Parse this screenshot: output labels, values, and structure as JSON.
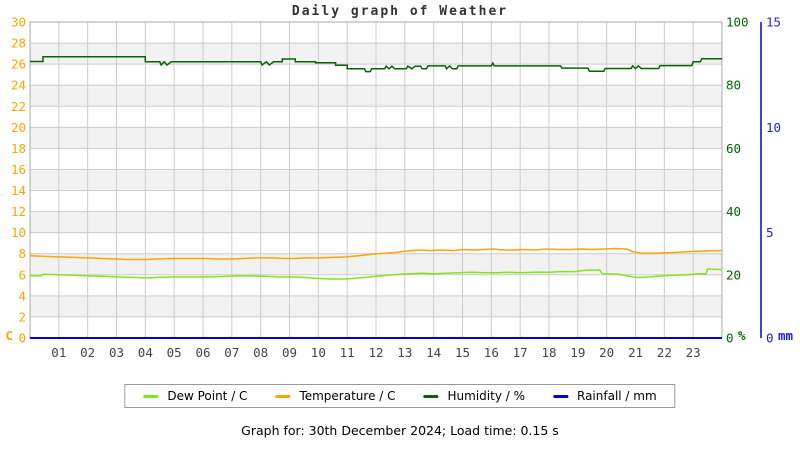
{
  "title": "Daily graph of Weather",
  "footer": {
    "text": "Graph for: 30th December 2024; Load time: 0.15 s"
  },
  "legend": {
    "items": [
      {
        "label": "Dew Point / C",
        "color": "#82E619"
      },
      {
        "label": "Temperature / C",
        "color": "#FFA500"
      },
      {
        "label": "Humidity / %",
        "color": "#006600"
      },
      {
        "label": "Rainfall / mm",
        "color": "#0000DD"
      }
    ]
  },
  "chart_data": {
    "type": "line",
    "title": "Daily graph of Weather",
    "grid": true,
    "band_color": "#F2F2F2",
    "grid_color": "#CCCCCC",
    "border_color": "#AAAAAA",
    "x_axis": {
      "range": [
        0,
        24
      ],
      "tick_labels": [
        "01",
        "02",
        "03",
        "04",
        "05",
        "06",
        "07",
        "08",
        "09",
        "10",
        "11",
        "12",
        "13",
        "14",
        "15",
        "16",
        "17",
        "18",
        "19",
        "20",
        "21",
        "22",
        "23"
      ],
      "label_color": "#444444"
    },
    "y_axis_temp": {
      "unit": "C",
      "range": [
        0,
        30
      ],
      "tick_step": 2,
      "tick_labels": [
        "0",
        "2",
        "4",
        "6",
        "8",
        "10",
        "12",
        "14",
        "16",
        "18",
        "20",
        "22",
        "24",
        "26",
        "28",
        "30"
      ],
      "color": "#FFA500",
      "side": "left"
    },
    "y_axis_humidity": {
      "unit": "%",
      "range": [
        0,
        100
      ],
      "tick_step": 20,
      "tick_labels": [
        "0",
        "20",
        "40",
        "60",
        "80",
        "100"
      ],
      "color": "#006600",
      "side": "right"
    },
    "y_axis_rain": {
      "unit": "mm",
      "range": [
        0,
        15
      ],
      "tick_step": 5,
      "tick_labels": [
        "0",
        "5",
        "10",
        "15"
      ],
      "color": "#2222DD",
      "axis_line_color": "#0000DD",
      "side": "far-right"
    },
    "series": [
      {
        "name": "Humidity / %",
        "axis": "humidity",
        "color": "#006600",
        "width": 1.5,
        "points": [
          [
            0,
            87.5
          ],
          [
            0.45,
            87.5
          ],
          [
            0.45,
            89
          ],
          [
            4,
            89
          ],
          [
            4,
            87.4
          ],
          [
            4.5,
            87.4
          ],
          [
            4.55,
            86.4
          ],
          [
            4.65,
            87.4
          ],
          [
            4.75,
            86.4
          ],
          [
            4.9,
            87.4
          ],
          [
            8,
            87.4
          ],
          [
            8.05,
            86.4
          ],
          [
            8.2,
            87.4
          ],
          [
            8.3,
            86.4
          ],
          [
            8.45,
            87.4
          ],
          [
            8.75,
            87.4
          ],
          [
            8.75,
            88.3
          ],
          [
            9.2,
            88.3
          ],
          [
            9.2,
            87.4
          ],
          [
            9.9,
            87.4
          ],
          [
            9.9,
            87.1
          ],
          [
            10.6,
            87.1
          ],
          [
            10.6,
            86.3
          ],
          [
            11,
            86.3
          ],
          [
            11,
            85.2
          ],
          [
            11.6,
            85.2
          ],
          [
            11.65,
            84.3
          ],
          [
            11.8,
            84.3
          ],
          [
            11.85,
            85.2
          ],
          [
            12.3,
            85.2
          ],
          [
            12.35,
            86
          ],
          [
            12.45,
            85.2
          ],
          [
            12.55,
            86
          ],
          [
            12.65,
            85.2
          ],
          [
            13.05,
            85.2
          ],
          [
            13.1,
            86
          ],
          [
            13.25,
            85.2
          ],
          [
            13.35,
            86
          ],
          [
            13.55,
            86
          ],
          [
            13.6,
            85.2
          ],
          [
            13.75,
            85.2
          ],
          [
            13.8,
            86.1
          ],
          [
            14.4,
            86.1
          ],
          [
            14.45,
            85.2
          ],
          [
            14.55,
            86.1
          ],
          [
            14.65,
            85.2
          ],
          [
            14.8,
            85.2
          ],
          [
            14.85,
            86.1
          ],
          [
            16,
            86.1
          ],
          [
            16.05,
            87
          ],
          [
            16.1,
            86.1
          ],
          [
            18.4,
            86.1
          ],
          [
            18.45,
            85.4
          ],
          [
            19.35,
            85.4
          ],
          [
            19.4,
            84.4
          ],
          [
            19.9,
            84.4
          ],
          [
            19.95,
            85.3
          ],
          [
            20.85,
            85.3
          ],
          [
            20.9,
            86.1
          ],
          [
            21,
            85.3
          ],
          [
            21.1,
            86.1
          ],
          [
            21.2,
            85.3
          ],
          [
            21.8,
            85.3
          ],
          [
            21.85,
            86.2
          ],
          [
            22.95,
            86.2
          ],
          [
            23,
            87.4
          ],
          [
            23.25,
            87.4
          ],
          [
            23.3,
            88.4
          ],
          [
            24,
            88.4
          ]
        ]
      },
      {
        "name": "Temperature / C",
        "axis": "temp",
        "color": "#FFA500",
        "width": 1.5,
        "points": [
          [
            0,
            7.8
          ],
          [
            0.5,
            7.75
          ],
          [
            1,
            7.7
          ],
          [
            1.5,
            7.65
          ],
          [
            2,
            7.6
          ],
          [
            2.5,
            7.55
          ],
          [
            3,
            7.5
          ],
          [
            3.4,
            7.45
          ],
          [
            4,
            7.45
          ],
          [
            4.4,
            7.5
          ],
          [
            4.9,
            7.55
          ],
          [
            5.5,
            7.55
          ],
          [
            6.1,
            7.55
          ],
          [
            6.5,
            7.5
          ],
          [
            7,
            7.5
          ],
          [
            7.4,
            7.55
          ],
          [
            7.9,
            7.6
          ],
          [
            8.4,
            7.6
          ],
          [
            8.8,
            7.55
          ],
          [
            9.2,
            7.55
          ],
          [
            9.5,
            7.6
          ],
          [
            10,
            7.6
          ],
          [
            10.5,
            7.65
          ],
          [
            11,
            7.7
          ],
          [
            11.4,
            7.8
          ],
          [
            11.7,
            7.9
          ],
          [
            12,
            8
          ],
          [
            12.3,
            8.05
          ],
          [
            12.6,
            8.1
          ],
          [
            12.9,
            8.2
          ],
          [
            13.2,
            8.3
          ],
          [
            13.5,
            8.35
          ],
          [
            13.9,
            8.3
          ],
          [
            14.3,
            8.35
          ],
          [
            14.7,
            8.3
          ],
          [
            15,
            8.4
          ],
          [
            15.4,
            8.35
          ],
          [
            15.8,
            8.4
          ],
          [
            16.1,
            8.45
          ],
          [
            16.4,
            8.35
          ],
          [
            16.8,
            8.35
          ],
          [
            17.1,
            8.4
          ],
          [
            17.5,
            8.35
          ],
          [
            17.9,
            8.45
          ],
          [
            18.3,
            8.4
          ],
          [
            18.7,
            8.4
          ],
          [
            19.1,
            8.45
          ],
          [
            19.5,
            8.4
          ],
          [
            19.9,
            8.45
          ],
          [
            20.3,
            8.5
          ],
          [
            20.7,
            8.45
          ],
          [
            20.9,
            8.2
          ],
          [
            21.2,
            8.05
          ],
          [
            21.7,
            8.05
          ],
          [
            22.1,
            8.1
          ],
          [
            22.5,
            8.15
          ],
          [
            22.9,
            8.2
          ],
          [
            23.3,
            8.25
          ],
          [
            23.7,
            8.3
          ],
          [
            24,
            8.3
          ]
        ]
      },
      {
        "name": "Dew Point / C",
        "axis": "temp",
        "color": "#82E619",
        "width": 1.5,
        "points": [
          [
            0,
            5.9
          ],
          [
            0.4,
            5.9
          ],
          [
            0.45,
            6.05
          ],
          [
            1,
            6
          ],
          [
            1.5,
            5.95
          ],
          [
            2,
            5.9
          ],
          [
            2.6,
            5.85
          ],
          [
            3,
            5.8
          ],
          [
            3.6,
            5.75
          ],
          [
            4,
            5.7
          ],
          [
            4.4,
            5.75
          ],
          [
            5,
            5.8
          ],
          [
            5.6,
            5.8
          ],
          [
            6.2,
            5.8
          ],
          [
            6.8,
            5.85
          ],
          [
            7.2,
            5.9
          ],
          [
            7.7,
            5.9
          ],
          [
            8.2,
            5.85
          ],
          [
            8.6,
            5.8
          ],
          [
            9,
            5.8
          ],
          [
            9.5,
            5.75
          ],
          [
            10,
            5.65
          ],
          [
            10.4,
            5.6
          ],
          [
            10.9,
            5.6
          ],
          [
            11.2,
            5.65
          ],
          [
            11.6,
            5.75
          ],
          [
            12,
            5.85
          ],
          [
            12.4,
            5.95
          ],
          [
            12.8,
            6.05
          ],
          [
            13.2,
            6.1
          ],
          [
            13.6,
            6.15
          ],
          [
            14,
            6.1
          ],
          [
            14.4,
            6.15
          ],
          [
            14.9,
            6.2
          ],
          [
            15.3,
            6.25
          ],
          [
            15.8,
            6.2
          ],
          [
            16.2,
            6.2
          ],
          [
            16.6,
            6.25
          ],
          [
            17,
            6.2
          ],
          [
            17.5,
            6.25
          ],
          [
            18,
            6.25
          ],
          [
            18.4,
            6.3
          ],
          [
            18.9,
            6.3
          ],
          [
            19.3,
            6.45
          ],
          [
            19.75,
            6.45
          ],
          [
            19.85,
            6.1
          ],
          [
            20.4,
            6.05
          ],
          [
            20.8,
            5.85
          ],
          [
            21.1,
            5.75
          ],
          [
            21.5,
            5.8
          ],
          [
            21.9,
            5.9
          ],
          [
            22.3,
            5.95
          ],
          [
            22.8,
            6
          ],
          [
            23.2,
            6.1
          ],
          [
            23.45,
            6.1
          ],
          [
            23.5,
            6.55
          ],
          [
            24,
            6.5
          ]
        ]
      },
      {
        "name": "Rainfall / mm",
        "axis": "rain",
        "color": "#0000DD",
        "width": 2,
        "points": [
          [
            0,
            0
          ],
          [
            24,
            0
          ]
        ]
      }
    ]
  }
}
